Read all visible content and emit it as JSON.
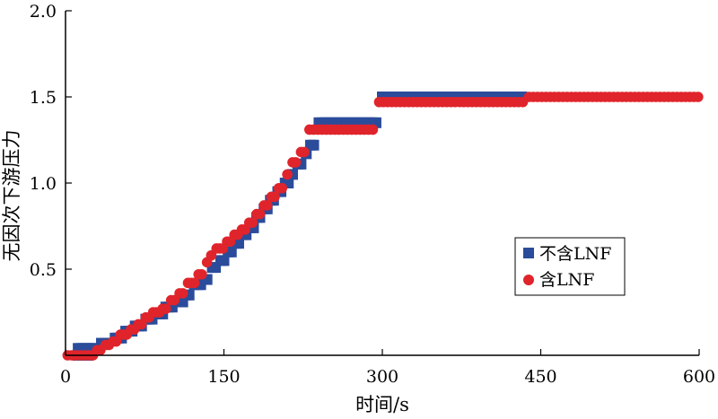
{
  "chart_data": {
    "type": "scatter",
    "title": "",
    "xlabel": "时间/s",
    "ylabel": "无因次下游压力",
    "xlim": [
      0,
      600
    ],
    "ylim": [
      0,
      2.0
    ],
    "xticks": [
      0,
      150,
      300,
      450,
      600
    ],
    "yticks": [
      0.5,
      1.0,
      1.5,
      2.0
    ],
    "xtick_labels": [
      "0",
      "150",
      "300",
      "450",
      "600"
    ],
    "ytick_labels": [
      "0.5",
      "1.0",
      "1.5",
      "2.0"
    ],
    "grid": false,
    "legend_position": "lower-right",
    "series": [
      {
        "name": "不含LNF",
        "marker": "square",
        "color": "#2b4c9b",
        "points": [
          [
            12,
            0.0
          ],
          [
            15,
            0.0
          ],
          [
            18,
            0.0
          ],
          [
            21,
            0.0
          ],
          [
            12,
            0.04
          ],
          [
            15,
            0.04
          ],
          [
            18,
            0.04
          ],
          [
            21,
            0.04
          ],
          [
            24,
            0.04
          ],
          [
            27,
            0.04
          ],
          [
            34,
            0.07
          ],
          [
            37,
            0.07
          ],
          [
            40,
            0.07
          ],
          [
            47,
            0.1
          ],
          [
            50,
            0.1
          ],
          [
            53,
            0.1
          ],
          [
            57,
            0.14
          ],
          [
            60,
            0.14
          ],
          [
            63,
            0.14
          ],
          [
            66,
            0.17
          ],
          [
            69,
            0.17
          ],
          [
            72,
            0.17
          ],
          [
            76,
            0.21
          ],
          [
            79,
            0.21
          ],
          [
            82,
            0.21
          ],
          [
            86,
            0.24
          ],
          [
            89,
            0.24
          ],
          [
            92,
            0.24
          ],
          [
            95,
            0.28
          ],
          [
            98,
            0.28
          ],
          [
            101,
            0.28
          ],
          [
            105,
            0.31
          ],
          [
            108,
            0.31
          ],
          [
            111,
            0.31
          ],
          [
            114,
            0.35
          ],
          [
            117,
            0.35
          ],
          [
            122,
            0.41
          ],
          [
            125,
            0.41
          ],
          [
            128,
            0.41
          ],
          [
            131,
            0.44
          ],
          [
            134,
            0.44
          ],
          [
            139,
            0.51
          ],
          [
            142,
            0.51
          ],
          [
            147,
            0.55
          ],
          [
            150,
            0.55
          ],
          [
            154,
            0.6
          ],
          [
            157,
            0.6
          ],
          [
            161,
            0.65
          ],
          [
            164,
            0.65
          ],
          [
            168,
            0.7
          ],
          [
            171,
            0.7
          ],
          [
            175,
            0.74
          ],
          [
            178,
            0.74
          ],
          [
            181,
            0.8
          ],
          [
            184,
            0.8
          ],
          [
            188,
            0.85
          ],
          [
            191,
            0.85
          ],
          [
            194,
            0.9
          ],
          [
            197,
            0.9
          ],
          [
            201,
            0.95
          ],
          [
            204,
            0.95
          ],
          [
            208,
            1.0
          ],
          [
            211,
            1.0
          ],
          [
            215,
            1.05
          ],
          [
            220,
            1.11
          ],
          [
            223,
            1.11
          ],
          [
            228,
            1.17
          ],
          [
            232,
            1.22
          ],
          [
            235,
            1.22
          ],
          [
            240,
            1.35
          ],
          [
            243,
            1.35
          ],
          [
            246,
            1.35
          ],
          [
            249,
            1.35
          ],
          [
            252,
            1.35
          ],
          [
            255,
            1.35
          ],
          [
            258,
            1.35
          ],
          [
            261,
            1.35
          ],
          [
            264,
            1.35
          ],
          [
            267,
            1.35
          ],
          [
            270,
            1.35
          ],
          [
            273,
            1.35
          ],
          [
            276,
            1.35
          ],
          [
            279,
            1.35
          ],
          [
            282,
            1.35
          ],
          [
            285,
            1.35
          ],
          [
            288,
            1.35
          ],
          [
            291,
            1.35
          ],
          [
            294,
            1.35
          ],
          [
            300,
            1.5
          ],
          [
            304,
            1.5
          ],
          [
            308,
            1.5
          ],
          [
            312,
            1.5
          ],
          [
            316,
            1.5
          ],
          [
            320,
            1.5
          ],
          [
            324,
            1.5
          ],
          [
            328,
            1.5
          ],
          [
            332,
            1.5
          ],
          [
            336,
            1.5
          ],
          [
            340,
            1.5
          ],
          [
            344,
            1.5
          ],
          [
            348,
            1.5
          ],
          [
            352,
            1.5
          ],
          [
            356,
            1.5
          ],
          [
            360,
            1.5
          ],
          [
            364,
            1.5
          ],
          [
            368,
            1.5
          ],
          [
            372,
            1.5
          ],
          [
            376,
            1.5
          ],
          [
            380,
            1.5
          ],
          [
            384,
            1.5
          ],
          [
            388,
            1.5
          ],
          [
            392,
            1.5
          ],
          [
            396,
            1.5
          ],
          [
            400,
            1.5
          ],
          [
            404,
            1.5
          ],
          [
            408,
            1.5
          ],
          [
            412,
            1.5
          ],
          [
            416,
            1.5
          ],
          [
            420,
            1.5
          ],
          [
            424,
            1.5
          ],
          [
            428,
            1.5
          ],
          [
            432,
            1.5
          ]
        ]
      },
      {
        "name": "含LNF",
        "marker": "circle",
        "color": "#e0242b",
        "points": [
          [
            2,
            0.0
          ],
          [
            6,
            0.0
          ],
          [
            10,
            0.0
          ],
          [
            14,
            0.0
          ],
          [
            18,
            0.0
          ],
          [
            22,
            0.0
          ],
          [
            26,
            0.0
          ],
          [
            30,
            0.03
          ],
          [
            33,
            0.03
          ],
          [
            38,
            0.06
          ],
          [
            41,
            0.06
          ],
          [
            45,
            0.08
          ],
          [
            48,
            0.08
          ],
          [
            52,
            0.12
          ],
          [
            55,
            0.12
          ],
          [
            58,
            0.12
          ],
          [
            62,
            0.15
          ],
          [
            65,
            0.15
          ],
          [
            69,
            0.18
          ],
          [
            72,
            0.18
          ],
          [
            76,
            0.22
          ],
          [
            79,
            0.22
          ],
          [
            83,
            0.25
          ],
          [
            86,
            0.25
          ],
          [
            89,
            0.25
          ],
          [
            92,
            0.27
          ],
          [
            95,
            0.27
          ],
          [
            100,
            0.32
          ],
          [
            103,
            0.32
          ],
          [
            108,
            0.36
          ],
          [
            111,
            0.36
          ],
          [
            116,
            0.42
          ],
          [
            119,
            0.42
          ],
          [
            122,
            0.42
          ],
          [
            126,
            0.47
          ],
          [
            129,
            0.47
          ],
          [
            134,
            0.54
          ],
          [
            138,
            0.58
          ],
          [
            143,
            0.62
          ],
          [
            146,
            0.62
          ],
          [
            149,
            0.62
          ],
          [
            153,
            0.66
          ],
          [
            156,
            0.66
          ],
          [
            160,
            0.7
          ],
          [
            163,
            0.7
          ],
          [
            167,
            0.73
          ],
          [
            170,
            0.73
          ],
          [
            174,
            0.77
          ],
          [
            177,
            0.77
          ],
          [
            181,
            0.82
          ],
          [
            184,
            0.82
          ],
          [
            188,
            0.87
          ],
          [
            191,
            0.87
          ],
          [
            195,
            0.92
          ],
          [
            198,
            0.92
          ],
          [
            202,
            0.97
          ],
          [
            205,
            0.97
          ],
          [
            210,
            1.05
          ],
          [
            215,
            1.12
          ],
          [
            218,
            1.12
          ],
          [
            223,
            1.18
          ],
          [
            226,
            1.18
          ],
          [
            231,
            1.31
          ],
          [
            235,
            1.31
          ],
          [
            239,
            1.31
          ],
          [
            243,
            1.31
          ],
          [
            247,
            1.31
          ],
          [
            251,
            1.31
          ],
          [
            255,
            1.31
          ],
          [
            259,
            1.31
          ],
          [
            263,
            1.31
          ],
          [
            267,
            1.31
          ],
          [
            271,
            1.31
          ],
          [
            275,
            1.31
          ],
          [
            279,
            1.31
          ],
          [
            283,
            1.31
          ],
          [
            287,
            1.31
          ],
          [
            291,
            1.31
          ],
          [
            297,
            1.47
          ],
          [
            301,
            1.47
          ],
          [
            305,
            1.47
          ],
          [
            309,
            1.47
          ],
          [
            313,
            1.47
          ],
          [
            317,
            1.47
          ],
          [
            321,
            1.47
          ],
          [
            325,
            1.47
          ],
          [
            329,
            1.47
          ],
          [
            333,
            1.47
          ],
          [
            337,
            1.47
          ],
          [
            341,
            1.47
          ],
          [
            345,
            1.47
          ],
          [
            349,
            1.47
          ],
          [
            353,
            1.47
          ],
          [
            357,
            1.47
          ],
          [
            361,
            1.47
          ],
          [
            365,
            1.47
          ],
          [
            369,
            1.47
          ],
          [
            373,
            1.47
          ],
          [
            377,
            1.47
          ],
          [
            381,
            1.47
          ],
          [
            385,
            1.47
          ],
          [
            389,
            1.47
          ],
          [
            393,
            1.47
          ],
          [
            397,
            1.47
          ],
          [
            401,
            1.47
          ],
          [
            405,
            1.47
          ],
          [
            409,
            1.47
          ],
          [
            413,
            1.47
          ],
          [
            417,
            1.47
          ],
          [
            421,
            1.47
          ],
          [
            425,
            1.47
          ],
          [
            429,
            1.47
          ],
          [
            433,
            1.47
          ],
          [
            439,
            1.5
          ],
          [
            443,
            1.5
          ],
          [
            447,
            1.5
          ],
          [
            451,
            1.5
          ],
          [
            455,
            1.5
          ],
          [
            459,
            1.5
          ],
          [
            463,
            1.5
          ],
          [
            467,
            1.5
          ],
          [
            471,
            1.5
          ],
          [
            475,
            1.5
          ],
          [
            479,
            1.5
          ],
          [
            483,
            1.5
          ],
          [
            487,
            1.5
          ],
          [
            491,
            1.5
          ],
          [
            495,
            1.5
          ],
          [
            499,
            1.5
          ],
          [
            503,
            1.5
          ],
          [
            507,
            1.5
          ],
          [
            511,
            1.5
          ],
          [
            515,
            1.5
          ],
          [
            519,
            1.5
          ],
          [
            523,
            1.5
          ],
          [
            527,
            1.5
          ],
          [
            531,
            1.5
          ],
          [
            535,
            1.5
          ],
          [
            539,
            1.5
          ],
          [
            543,
            1.5
          ],
          [
            547,
            1.5
          ],
          [
            551,
            1.5
          ],
          [
            555,
            1.5
          ],
          [
            559,
            1.5
          ],
          [
            563,
            1.5
          ],
          [
            567,
            1.5
          ],
          [
            571,
            1.5
          ],
          [
            575,
            1.5
          ],
          [
            579,
            1.5
          ],
          [
            583,
            1.5
          ],
          [
            587,
            1.5
          ],
          [
            591,
            1.5
          ],
          [
            595,
            1.5
          ],
          [
            599,
            1.5
          ]
        ]
      }
    ]
  }
}
